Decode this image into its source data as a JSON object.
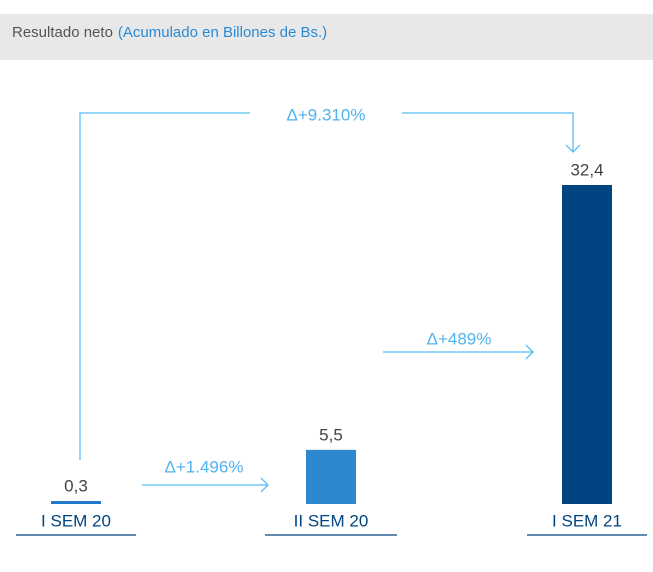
{
  "chart_data": {
    "type": "bar",
    "title": "Resultado neto",
    "subtitle": "(Acumulado en Billones de Bs.)",
    "categories": [
      "I SEM 20",
      "II SEM 20",
      "I SEM 21"
    ],
    "values": [
      0.3,
      5.5,
      32.4
    ],
    "value_labels": [
      "0,3",
      "5,5",
      "32,4"
    ],
    "colors": [
      "#1f78c8",
      "#2d88d0",
      "#004481"
    ],
    "annotations": [
      "Δ+9.310%",
      "Δ+1.496%",
      "Δ+489%"
    ]
  }
}
